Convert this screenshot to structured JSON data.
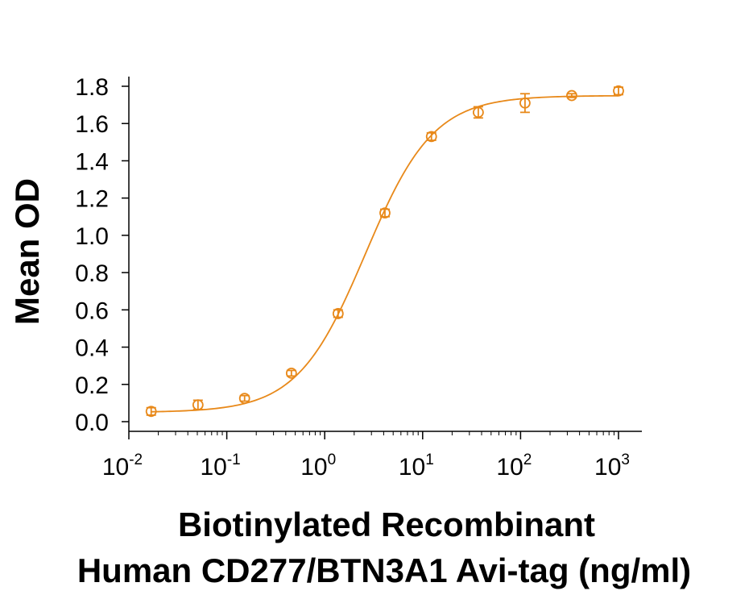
{
  "chart_data": {
    "type": "scatter",
    "xlabel_lines": [
      "Biotinylated Recombinant",
      "Human CD277/BTN3A1 Avi-tag (ng/ml)"
    ],
    "ylabel": "Mean OD",
    "x_scale": "log",
    "xlim": [
      0.01,
      1000
    ],
    "ylim": [
      0.0,
      1.8
    ],
    "y_ticks": [
      "0.0",
      "0.2",
      "0.4",
      "0.6",
      "0.8",
      "1.0",
      "1.2",
      "1.4",
      "1.6",
      "1.8"
    ],
    "x_ticks": [
      {
        "base": "10",
        "exp": "-2"
      },
      {
        "base": "10",
        "exp": "-1"
      },
      {
        "base": "10",
        "exp": "0"
      },
      {
        "base": "10",
        "exp": "1"
      },
      {
        "base": "10",
        "exp": "2"
      },
      {
        "base": "10",
        "exp": "3"
      }
    ],
    "series": [
      {
        "color": "#E8891A",
        "marker": "open-circle",
        "fit": "4PL",
        "points": [
          {
            "x": 0.0169,
            "y": 0.055,
            "err": 0.02
          },
          {
            "x": 0.0508,
            "y": 0.09,
            "err": 0.025
          },
          {
            "x": 0.152,
            "y": 0.125,
            "err": 0.015
          },
          {
            "x": 0.457,
            "y": 0.26,
            "err": 0.015
          },
          {
            "x": 1.37,
            "y": 0.58,
            "err": 0.02
          },
          {
            "x": 4.12,
            "y": 1.12,
            "err": 0.02
          },
          {
            "x": 12.3,
            "y": 1.53,
            "err": 0.02
          },
          {
            "x": 37.0,
            "y": 1.66,
            "err": 0.03
          },
          {
            "x": 111.0,
            "y": 1.71,
            "err": 0.05
          },
          {
            "x": 333.0,
            "y": 1.75,
            "err": 0.01
          },
          {
            "x": 1000.0,
            "y": 1.775,
            "err": 0.02
          }
        ]
      }
    ],
    "grid": false,
    "legend": "none"
  }
}
